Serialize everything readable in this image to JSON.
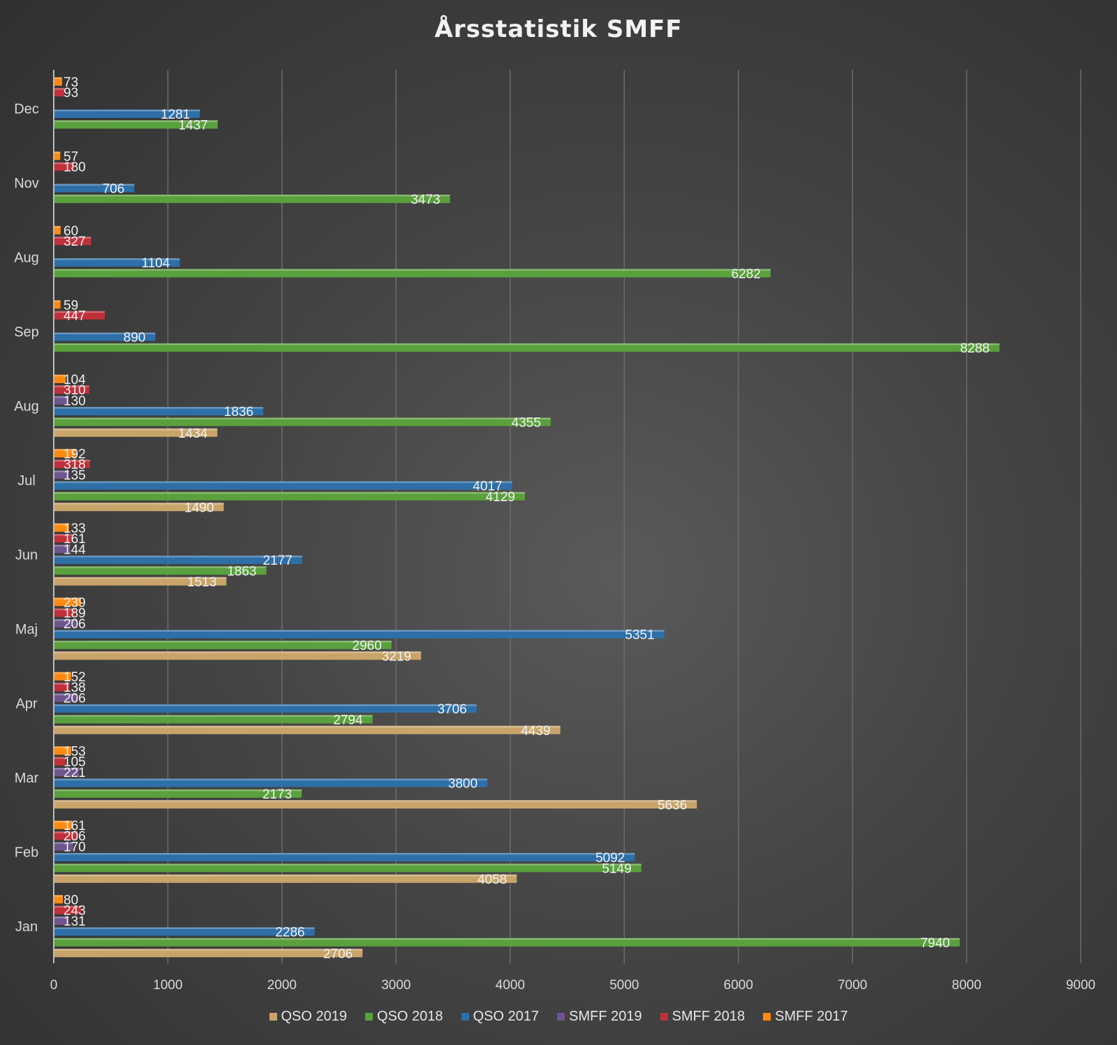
{
  "chart_data": {
    "type": "bar",
    "orientation": "horizontal",
    "title": "Årsstatistik SMFF",
    "xlabel": "",
    "ylabel": "",
    "xlim": [
      0,
      9000
    ],
    "x_ticks": [
      0,
      1000,
      2000,
      3000,
      4000,
      5000,
      6000,
      7000,
      8000,
      9000
    ],
    "grid": true,
    "legend_position": "bottom",
    "categories": [
      "Jan",
      "Feb",
      "Mar",
      "Apr",
      "Maj",
      "Jun",
      "Jul",
      "Aug",
      "Sep",
      "Aug",
      "Nov",
      "Dec"
    ],
    "series": [
      {
        "name": "QSO 2019",
        "color": "#c8a46a",
        "values": [
          2706,
          4058,
          5636,
          4439,
          3219,
          1513,
          1490,
          1434,
          null,
          null,
          null,
          null
        ]
      },
      {
        "name": "QSO 2018",
        "color": "#5aa03c",
        "values": [
          7940,
          5149,
          2173,
          2794,
          2960,
          1863,
          4129,
          4355,
          8288,
          6282,
          3473,
          1437
        ]
      },
      {
        "name": "QSO 2017",
        "color": "#2e6fa8",
        "values": [
          2286,
          5092,
          3800,
          3706,
          5351,
          2177,
          4017,
          1836,
          890,
          1104,
          706,
          1281
        ]
      },
      {
        "name": "SMFF 2019",
        "color": "#6e558e",
        "values": [
          131,
          170,
          221,
          206,
          206,
          144,
          135,
          130,
          null,
          null,
          null,
          null
        ]
      },
      {
        "name": "SMFF 2018",
        "color": "#c0303a",
        "values": [
          243,
          206,
          105,
          138,
          189,
          161,
          318,
          310,
          447,
          327,
          180,
          93
        ]
      },
      {
        "name": "SMFF 2017",
        "color": "#ff8a10",
        "values": [
          80,
          161,
          153,
          152,
          239,
          133,
          192,
          104,
          59,
          60,
          57,
          73
        ]
      }
    ]
  }
}
